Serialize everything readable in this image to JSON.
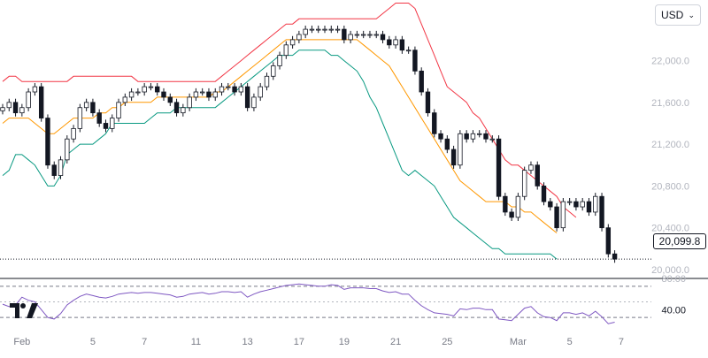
{
  "currency": {
    "label": "USD",
    "chevron": "chevron-down-icon"
  },
  "last_price_label": "20,099.8",
  "logo": "tradingview-logo-icon",
  "colors": {
    "candle": "#131722",
    "upper_band": "#f23645",
    "middle_band": "#ff9800",
    "lower_band": "#089981",
    "rsi_line": "#7e57c2",
    "grid_text": "#b2b5be"
  },
  "chart_data": [
    {
      "type": "candlestick",
      "title": "",
      "x_ticks": [
        "Feb",
        "5",
        "7",
        "11",
        "13",
        "17",
        "19",
        "21",
        "25",
        "Mar",
        "5",
        "7"
      ],
      "x_tick_index": [
        3,
        14,
        22,
        30,
        38,
        46,
        53,
        61,
        69,
        80,
        88,
        96
      ],
      "y_ticks": [
        20000,
        20400,
        20800,
        21200,
        21600,
        22000
      ],
      "y_tick_labels": [
        "20,000.0",
        "20,400.0",
        "20,800.0",
        "21,200.0",
        "21,600.0",
        "22,000.0"
      ],
      "ylim": [
        19915,
        22580
      ],
      "last_price": 20099.8,
      "overlay": "bollinger bands",
      "close": [
        21550,
        21600,
        21500,
        21550,
        21700,
        21750,
        21450,
        21000,
        20900,
        21050,
        21250,
        21350,
        21550,
        21600,
        21500,
        21400,
        21350,
        21450,
        21600,
        21650,
        21700,
        21700,
        21750,
        21750,
        21700,
        21650,
        21600,
        21500,
        21550,
        21650,
        21700,
        21700,
        21650,
        21700,
        21750,
        21750,
        21700,
        21750,
        21550,
        21650,
        21750,
        21850,
        21950,
        22050,
        22150,
        22200,
        22250,
        22300,
        22300,
        22300,
        22300,
        22300,
        22300,
        22200,
        22250,
        22250,
        22250,
        22250,
        22250,
        22200,
        22150,
        22200,
        22100,
        22100,
        21900,
        21700,
        21500,
        21300,
        21250,
        21150,
        21000,
        21300,
        21250,
        21300,
        21300,
        21250,
        21250,
        20700,
        20550,
        20500,
        20700,
        20950,
        21000,
        20800,
        20650,
        20600,
        20400,
        20650,
        20650,
        20600,
        20650,
        20550,
        20700,
        20400,
        20150,
        20100
      ],
      "bb_upper": [
        21800,
        21850,
        21850,
        21800,
        21800,
        21800,
        21800,
        21800,
        21800,
        21800,
        21800,
        21850,
        21850,
        21850,
        21850,
        21850,
        21850,
        21850,
        21850,
        21850,
        21850,
        21800,
        21800,
        21800,
        21800,
        21800,
        21800,
        21800,
        21800,
        21800,
        21800,
        21800,
        21800,
        21800,
        21850,
        21900,
        21950,
        22000,
        22050,
        22100,
        22150,
        22200,
        22250,
        22300,
        22350,
        22350,
        22400,
        22400,
        22400,
        22400,
        22400,
        22400,
        22400,
        22400,
        22400,
        22400,
        22400,
        22400,
        22400,
        22450,
        22500,
        22550,
        22550,
        22550,
        22500,
        22350,
        22200,
        22050,
        21900,
        21750,
        21700,
        21650,
        21600,
        21500,
        21450,
        21350,
        21250,
        21150,
        21050,
        21000,
        21000,
        20950,
        20900,
        20850,
        20800,
        20750,
        20700,
        20600,
        20550,
        20500
      ],
      "bb_middle": [
        21400,
        21450,
        21450,
        21450,
        21450,
        21400,
        21350,
        21300,
        21300,
        21350,
        21400,
        21450,
        21450,
        21450,
        21450,
        21500,
        21500,
        21550,
        21550,
        21600,
        21600,
        21600,
        21600,
        21600,
        21650,
        21650,
        21650,
        21650,
        21650,
        21650,
        21650,
        21650,
        21650,
        21700,
        21700,
        21750,
        21800,
        21850,
        21900,
        21950,
        22000,
        22050,
        22100,
        22150,
        22200,
        22200,
        22200,
        22200,
        22200,
        22200,
        22200,
        22200,
        22200,
        22200,
        22200,
        22200,
        22150,
        22100,
        22050,
        22000,
        21950,
        21850,
        21750,
        21650,
        21550,
        21450,
        21350,
        21250,
        21150,
        21050,
        20950,
        20850,
        20800,
        20750,
        20700,
        20650,
        20650,
        20650,
        20650,
        20600,
        20600,
        20550,
        20550,
        20500,
        20450,
        20400,
        20350
      ],
      "bb_lower": [
        20900,
        20950,
        21100,
        21100,
        21050,
        21000,
        20900,
        20800,
        20800,
        20900,
        21100,
        21150,
        21200,
        21200,
        21200,
        21250,
        21300,
        21400,
        21400,
        21400,
        21400,
        21400,
        21400,
        21450,
        21500,
        21500,
        21500,
        21550,
        21550,
        21550,
        21550,
        21550,
        21550,
        21550,
        21600,
        21650,
        21700,
        21750,
        21800,
        21850,
        21900,
        21950,
        22000,
        22050,
        22050,
        22050,
        22100,
        22100,
        22100,
        22100,
        22100,
        22050,
        22050,
        22000,
        21950,
        21900,
        21800,
        21650,
        21550,
        21400,
        21250,
        21100,
        20950,
        20900,
        20950,
        20900,
        20850,
        20800,
        20700,
        20600,
        20500,
        20450,
        20400,
        20350,
        20300,
        20250,
        20200,
        20200,
        20150,
        20150,
        20150,
        20150,
        20150,
        20150,
        20150,
        20150,
        20100
      ],
      "rsi": [
        47,
        44,
        46,
        56,
        52,
        50,
        40,
        30,
        28,
        35,
        46,
        52,
        57,
        60,
        58,
        56,
        55,
        57,
        60,
        61,
        62,
        61,
        62,
        62,
        61,
        60,
        59,
        56,
        57,
        60,
        61,
        62,
        60,
        61,
        63,
        63,
        62,
        63,
        56,
        60,
        63,
        65,
        67,
        69,
        71,
        72,
        73,
        72,
        71,
        70,
        70,
        72,
        71,
        66,
        68,
        68,
        68,
        67,
        67,
        64,
        62,
        63,
        60,
        60,
        52,
        45,
        40,
        36,
        35,
        34,
        32,
        41,
        40,
        42,
        42,
        40,
        40,
        28,
        27,
        26,
        34,
        42,
        44,
        36,
        31,
        30,
        26,
        36,
        36,
        34,
        36,
        32,
        38,
        31,
        22,
        24
      ],
      "rsi_levels": [
        70,
        50,
        30
      ],
      "rsi_ticks": [
        {
          "value": 80,
          "label": "80.00"
        },
        {
          "value": 40,
          "label": "40.00"
        }
      ]
    }
  ]
}
